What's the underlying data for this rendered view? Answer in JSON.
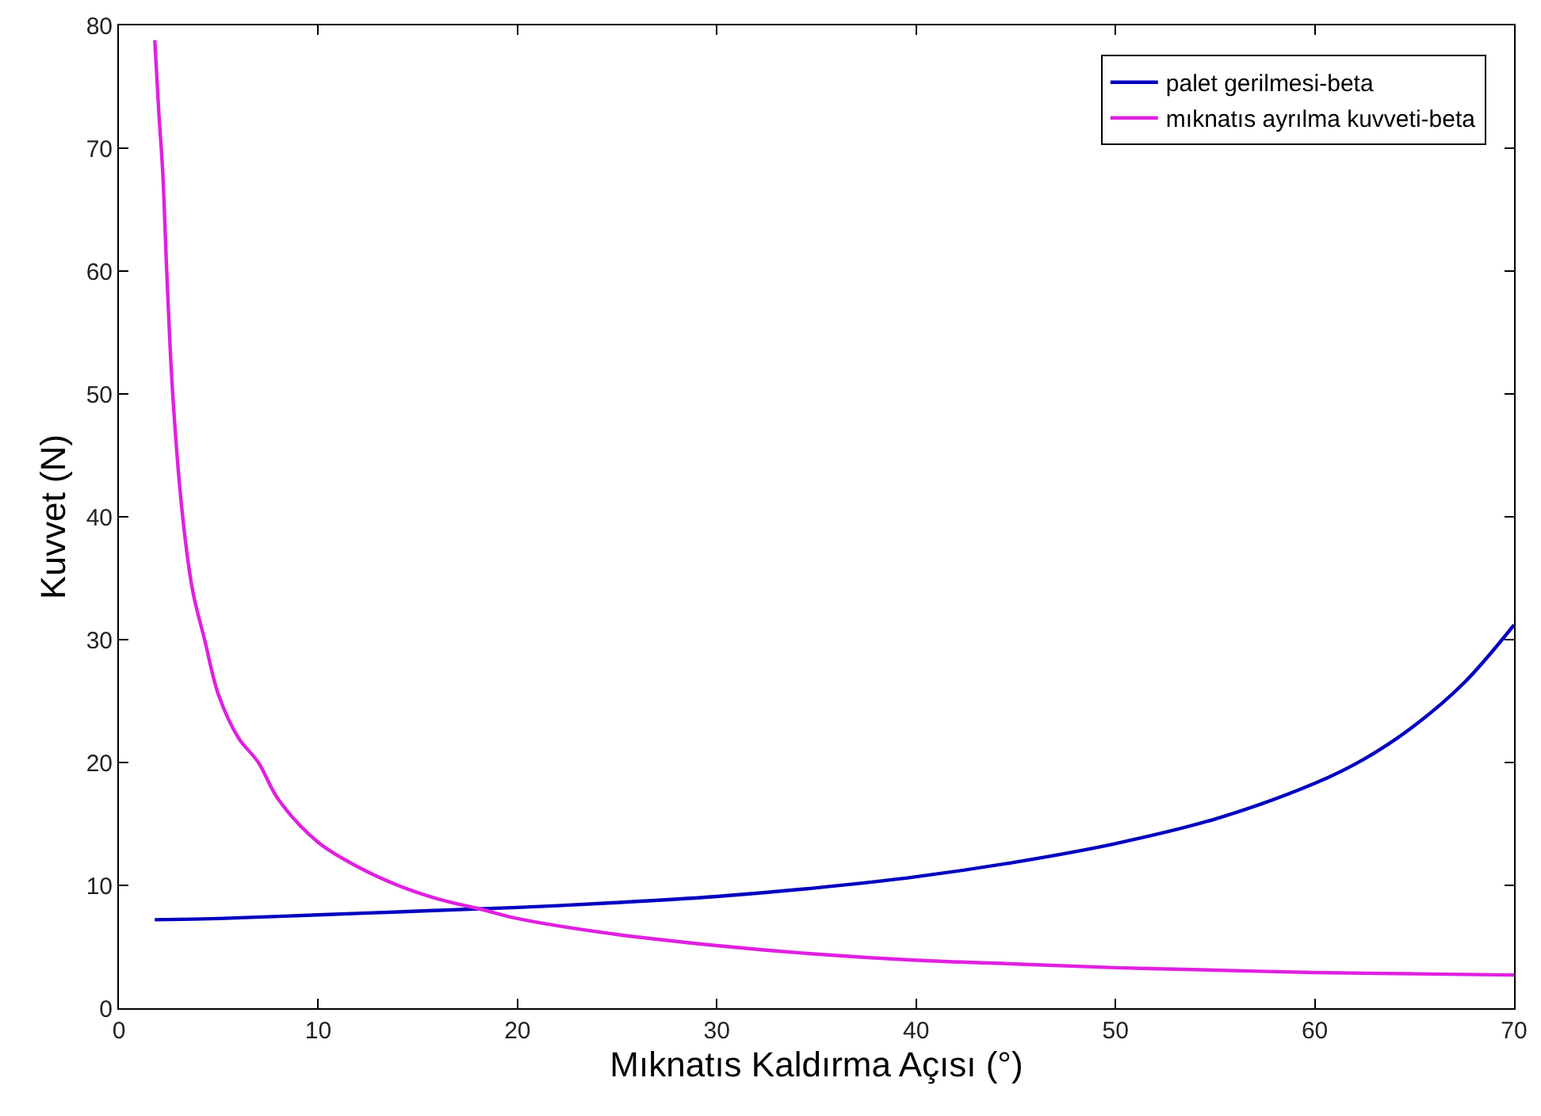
{
  "chart_data": {
    "type": "line",
    "xlabel": "Mıknatıs Kaldırma Açısı (°)",
    "ylabel": "Kuvvet (N)",
    "xlim": [
      0,
      70
    ],
    "ylim": [
      0,
      80
    ],
    "xticks": [
      0,
      10,
      20,
      30,
      40,
      50,
      60,
      70
    ],
    "yticks": [
      0,
      10,
      20,
      30,
      40,
      50,
      60,
      70,
      80
    ],
    "legend": "top right",
    "marker": "none",
    "line_style": "solid",
    "series": [
      {
        "name": "palet gerilmesi-beta",
        "color": "#0000c0",
        "x": [
          1.8,
          5,
          10,
          15,
          20,
          25,
          30,
          35,
          40,
          45,
          50,
          55,
          60,
          62.5,
          65,
          67.5,
          70
        ],
        "values": [
          7.2,
          7.3,
          7.6,
          7.9,
          8.2,
          8.6,
          9.1,
          9.8,
          10.7,
          11.9,
          13.4,
          15.4,
          18.3,
          20.3,
          23,
          26.5,
          31.2
        ]
      },
      {
        "name": "mıknatıs ayrılma kuvveti-beta",
        "color": "#e020e0",
        "x": [
          1.8,
          2,
          2.2,
          2.4,
          2.7,
          3.2,
          3.7,
          4.3,
          5,
          6,
          7,
          8,
          10,
          12,
          14,
          16,
          18.3,
          20,
          25,
          30,
          35,
          40,
          45,
          50,
          55,
          60,
          65,
          70
        ],
        "values": [
          78.8,
          73,
          68,
          60,
          50,
          40,
          34,
          30,
          25.5,
          22,
          20,
          17,
          13.5,
          11.5,
          10,
          8.9,
          8.0,
          7.3,
          6.0,
          5.1,
          4.4,
          3.9,
          3.6,
          3.3,
          3.1,
          2.9,
          2.8,
          2.7
        ]
      }
    ]
  }
}
